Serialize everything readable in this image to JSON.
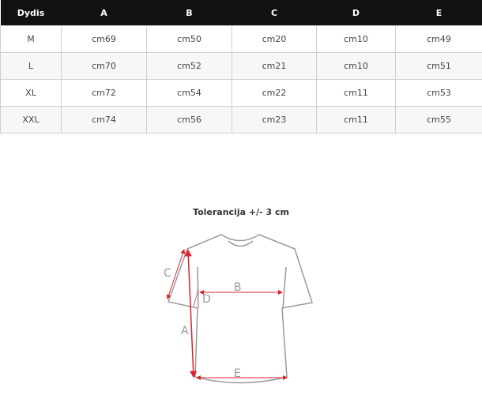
{
  "table": {
    "headers": [
      "Dydis",
      "A",
      "B",
      "C",
      "D",
      "E"
    ],
    "rows": [
      [
        "M",
        "cm69",
        "cm50",
        "cm20",
        "cm10",
        "cm49"
      ],
      [
        "L",
        "cm70",
        "cm52",
        "cm21",
        "cm10",
        "cm51"
      ],
      [
        "XL",
        "cm72",
        "cm54",
        "cm22",
        "cm11",
        "cm53"
      ],
      [
        "XXL",
        "cm74",
        "cm56",
        "cm23",
        "cm11",
        "cm55"
      ]
    ]
  },
  "diagram": {
    "title": "Tolerancija +/- 3 cm",
    "labels": {
      "a": "A",
      "b": "B",
      "c": "C",
      "d": "D",
      "e": "E"
    },
    "line_color": "#9a9a9a",
    "arrow_color": "#e0202a"
  }
}
